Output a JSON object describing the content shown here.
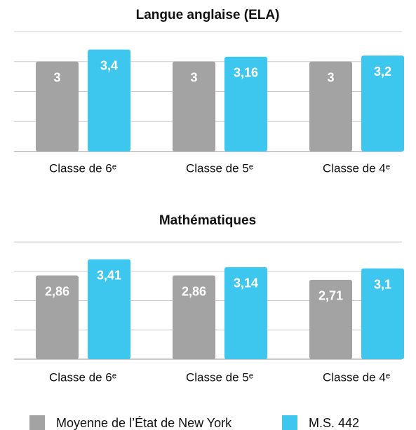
{
  "chart_data": [
    {
      "type": "bar",
      "title": "Langue anglaise (ELA)",
      "categories": [
        "Classe de 6ᵉ",
        "Classe de 5ᵉ",
        "Classe de 4ᵉ"
      ],
      "series": [
        {
          "name": "Moyenne de l’État de New York",
          "color": "#a3a3a3",
          "values": [
            3,
            3,
            3
          ],
          "value_labels": [
            "3",
            "3",
            "3"
          ]
        },
        {
          "name": "M.S. 442",
          "color": "#3ec7ee",
          "values": [
            3.4,
            3.16,
            3.2
          ],
          "value_labels": [
            "3,4",
            "3,16",
            "3,2"
          ]
        }
      ],
      "ylim": [
        0,
        4
      ],
      "yticks": [
        0,
        1,
        2,
        3,
        4
      ],
      "grid": true
    },
    {
      "type": "bar",
      "title": "Mathématiques",
      "categories": [
        "Classe de 6ᵉ",
        "Classe de 5ᵉ",
        "Classe de 4ᵉ"
      ],
      "series": [
        {
          "name": "Moyenne de l’État de New York",
          "color": "#a3a3a3",
          "values": [
            2.86,
            2.86,
            2.71
          ],
          "value_labels": [
            "2,86",
            "2,86",
            "2,71"
          ]
        },
        {
          "name": "M.S. 442",
          "color": "#3ec7ee",
          "values": [
            3.41,
            3.14,
            3.1
          ],
          "value_labels": [
            "3,41",
            "3,14",
            "3,1"
          ]
        }
      ],
      "ylim": [
        0,
        4
      ],
      "yticks": [
        0,
        1,
        2,
        3,
        4
      ],
      "grid": true
    }
  ]
}
